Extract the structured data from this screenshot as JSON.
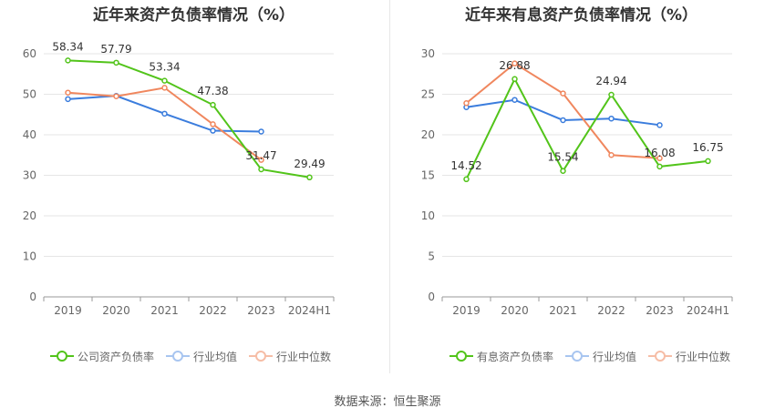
{
  "colors": {
    "company": "#52c41a",
    "industry_avg": "#3b7ddd",
    "industry_median": "#f0875e",
    "grid": "#e6e6e6",
    "axis": "#999999"
  },
  "source": "数据来源：恒生聚源",
  "chart_data": [
    {
      "type": "line",
      "title": "近年来资产负债率情况（%）",
      "categories": [
        "2019",
        "2020",
        "2021",
        "2022",
        "2023",
        "2024H1"
      ],
      "ylim": [
        0,
        60
      ],
      "yticks": [
        0,
        10,
        20,
        30,
        40,
        50,
        60
      ],
      "series": [
        {
          "name": "公司资产负债率",
          "color_key": "company",
          "values": [
            58.34,
            57.79,
            53.34,
            47.38,
            31.47,
            29.49
          ],
          "labels": [
            "58.34",
            "57.79",
            "53.34",
            "47.38",
            "31.47",
            "29.49"
          ]
        },
        {
          "name": "行业均值",
          "color_key": "industry_avg",
          "values": [
            48.8,
            49.6,
            45.2,
            41.0,
            40.8,
            null
          ]
        },
        {
          "name": "行业中位数",
          "color_key": "industry_median",
          "values": [
            50.4,
            49.5,
            51.6,
            42.6,
            33.8,
            null
          ]
        }
      ]
    },
    {
      "type": "line",
      "title": "近年来有息资产负债率情况（%）",
      "categories": [
        "2019",
        "2020",
        "2021",
        "2022",
        "2023",
        "2024H1"
      ],
      "ylim": [
        0,
        30
      ],
      "yticks": [
        0,
        5,
        10,
        15,
        20,
        25,
        30
      ],
      "series": [
        {
          "name": "有息资产负债率",
          "color_key": "company",
          "values": [
            14.52,
            26.88,
            15.54,
            24.94,
            16.08,
            16.75
          ],
          "labels": [
            "14.52",
            "26.88",
            "15.54",
            "24.94",
            "16.08",
            "16.75"
          ]
        },
        {
          "name": "行业均值",
          "color_key": "industry_avg",
          "values": [
            23.4,
            24.3,
            21.8,
            22.0,
            21.2,
            null
          ]
        },
        {
          "name": "行业中位数",
          "color_key": "industry_median",
          "values": [
            23.9,
            28.8,
            25.1,
            17.5,
            17.1,
            null
          ]
        }
      ]
    }
  ]
}
